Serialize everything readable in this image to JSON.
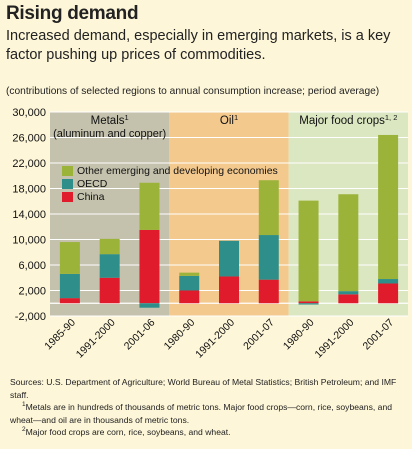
{
  "title": "Rising demand",
  "subtitle": "Increased demand, especially in emerging markets, is a key factor pushing up prices of commodities.",
  "note": "(contributions of selected regions to annual consumption increase; period average)",
  "colors": {
    "metals_panel": "#c4c2ad",
    "oil_panel": "#f3c98e",
    "food_panel": "#dbe7c1",
    "other": "#9cb33a",
    "oecd": "#2e8f8a",
    "china": "#e01b2b"
  },
  "chart_data": {
    "type": "bar",
    "stacked": true,
    "ylim": [
      -2000,
      30000
    ],
    "yticks": [
      "30,000",
      "26,000",
      "22,000",
      "18,000",
      "14,000",
      "10,000",
      "6,000",
      "2,000",
      "-2,000"
    ],
    "ytick_values": [
      30000,
      26000,
      22000,
      18000,
      14000,
      10000,
      6000,
      2000,
      -2000
    ],
    "legend": {
      "placement": "middle-left",
      "entries": [
        {
          "key": "other",
          "label": "Other emerging and developing economies"
        },
        {
          "key": "oecd",
          "label": "OECD"
        },
        {
          "key": "china",
          "label": "China"
        }
      ]
    },
    "panels": [
      {
        "label": "Metals",
        "sup": "1",
        "sublabel": "(aluminum and copper)",
        "color_key": "metals_panel",
        "bars": [
          0,
          1,
          2
        ]
      },
      {
        "label": "Oil",
        "sup": "1",
        "sublabel": "",
        "color_key": "oil_panel",
        "bars": [
          3,
          4,
          5
        ]
      },
      {
        "label": "Major food crops",
        "sup": "1, 2",
        "sublabel": "",
        "color_key": "food_panel",
        "bars": [
          6,
          7,
          8
        ]
      }
    ],
    "categories": [
      "1985-90",
      "1991-2000",
      "2001-06",
      "1980-90",
      "1991-2000",
      "2001-07",
      "1980-90",
      "1991-2000",
      "2001-07"
    ],
    "series": [
      {
        "name": "China",
        "key": "china",
        "values": [
          800,
          4000,
          11500,
          2000,
          4200,
          3700,
          300,
          1400,
          3100
        ]
      },
      {
        "name": "OECD",
        "key": "oecd",
        "values": [
          3800,
          3700,
          -700,
          2300,
          5600,
          7000,
          -200,
          500,
          700
        ]
      },
      {
        "name": "Other emerging and developing economies",
        "key": "other",
        "values": [
          5000,
          2400,
          7400,
          500,
          0,
          8600,
          15800,
          15200,
          22600
        ]
      }
    ]
  },
  "sources": {
    "line1": "Sources: U.S. Department of Agriculture; World Bureau of Metal Statistics; British Petroleum; and IMF staff.",
    "fn1_mark": "1",
    "fn1": "Metals are in hundreds of thousands of metric tons. Major food crops—corn, rice, soybeans, and wheat—and oil are in thousands of metric tons.",
    "fn2_mark": "2",
    "fn2": "Major food crops are corn, rice, soybeans, and wheat."
  }
}
